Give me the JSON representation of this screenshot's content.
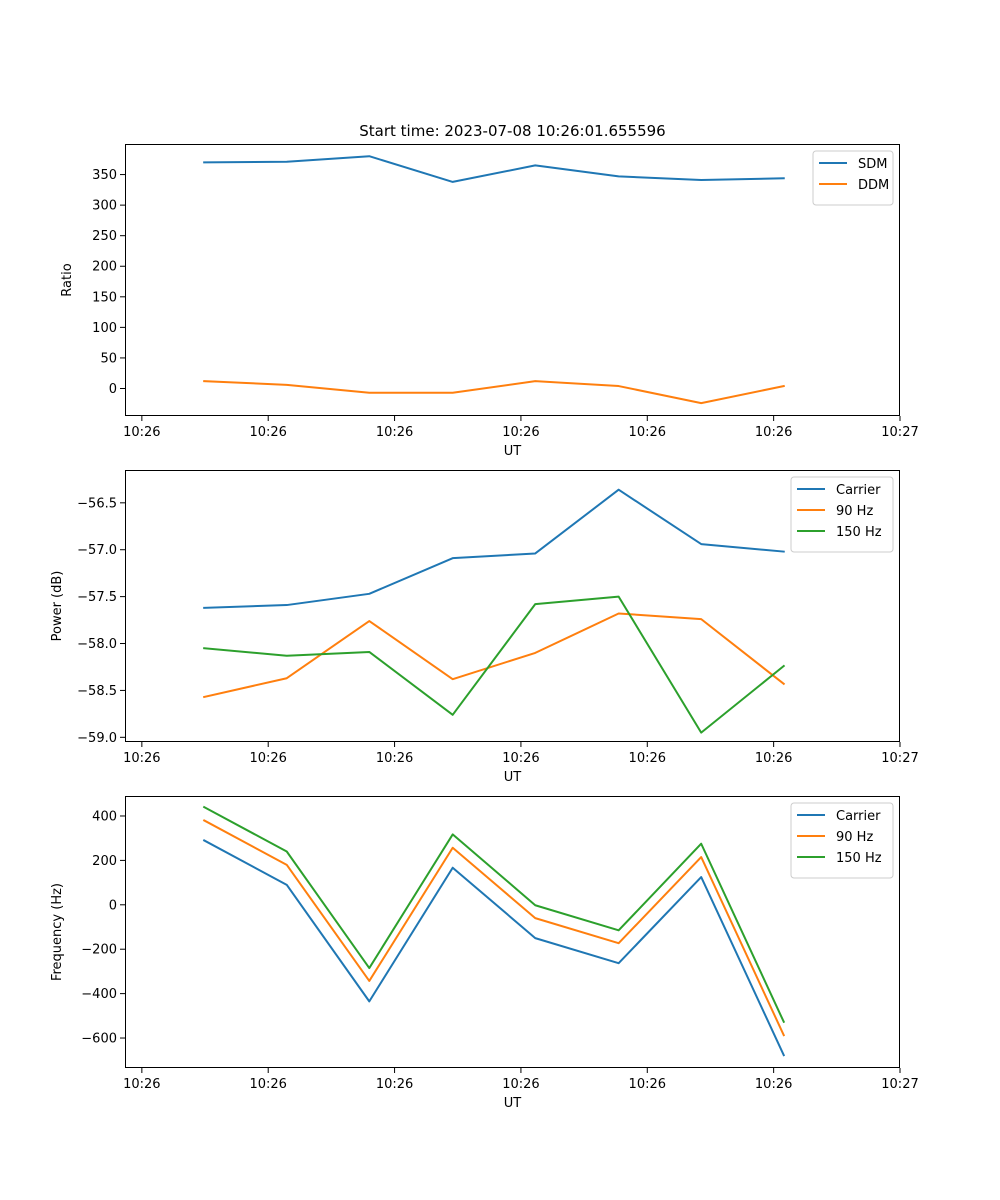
{
  "figure_title": "Start time: 2023-07-08 10:26:01.655596",
  "chart_data": [
    {
      "type": "line",
      "title": "Start time: 2023-07-08 10:26:01.655596",
      "xlabel": "UT",
      "ylabel": "Ratio",
      "xlim": [
        -0.2,
        9
      ],
      "ylim": [
        -45,
        400
      ],
      "xticks": [
        0,
        1.5,
        3,
        4.5,
        6,
        7.5,
        9
      ],
      "xtick_labels": [
        "10:26",
        "10:26",
        "10:26",
        "10:26",
        "10:26",
        "10:26",
        "10:27"
      ],
      "yticks": [
        0,
        50,
        100,
        150,
        200,
        250,
        300,
        350
      ],
      "ytick_labels": [
        "0",
        "50",
        "100",
        "150",
        "200",
        "250",
        "300",
        "350"
      ],
      "x": [
        0.74,
        1.72,
        2.7,
        3.69,
        4.67,
        5.66,
        6.64,
        7.62
      ],
      "series": [
        {
          "name": "SDM",
          "color": "#1f77b4",
          "values": [
            370,
            371,
            380,
            338,
            365,
            347,
            341,
            344
          ]
        },
        {
          "name": "DDM",
          "color": "#ff7f0e",
          "values": [
            12,
            6,
            -7,
            -7,
            12,
            4,
            -24,
            4
          ]
        }
      ],
      "legend": "top-right"
    },
    {
      "type": "line",
      "title": "",
      "xlabel": "UT",
      "ylabel": "Power (dB)",
      "xlim": [
        -0.2,
        9
      ],
      "ylim": [
        -59.05,
        -56.15
      ],
      "xticks": [
        0,
        1.5,
        3,
        4.5,
        6,
        7.5,
        9
      ],
      "xtick_labels": [
        "10:26",
        "10:26",
        "10:26",
        "10:26",
        "10:26",
        "10:26",
        "10:27"
      ],
      "yticks": [
        -59.0,
        -58.5,
        -58.0,
        -57.5,
        -57.0,
        -56.5
      ],
      "ytick_labels": [
        "−59.0",
        "−58.5",
        "−58.0",
        "−57.5",
        "−57.0",
        "−56.5"
      ],
      "x": [
        0.74,
        1.72,
        2.7,
        3.69,
        4.67,
        5.66,
        6.64,
        7.62
      ],
      "series": [
        {
          "name": "Carrier",
          "color": "#1f77b4",
          "values": [
            -57.62,
            -57.59,
            -57.47,
            -57.09,
            -57.04,
            -56.36,
            -56.94,
            -57.02
          ]
        },
        {
          "name": "90 Hz",
          "color": "#ff7f0e",
          "values": [
            -58.57,
            -58.37,
            -57.76,
            -58.38,
            -58.1,
            -57.68,
            -57.74,
            -58.43
          ]
        },
        {
          "name": "150 Hz",
          "color": "#2ca02c",
          "values": [
            -58.05,
            -58.13,
            -58.09,
            -58.76,
            -57.58,
            -57.5,
            -58.95,
            -58.24
          ]
        }
      ],
      "legend": "top-right"
    },
    {
      "type": "line",
      "title": "",
      "xlabel": "UT",
      "ylabel": "Frequency (Hz)",
      "xlim": [
        -0.2,
        9
      ],
      "ylim": [
        -735,
        490
      ],
      "xticks": [
        0,
        1.5,
        3,
        4.5,
        6,
        7.5,
        9
      ],
      "xtick_labels": [
        "10:26",
        "10:26",
        "10:26",
        "10:26",
        "10:26",
        "10:26",
        "10:27"
      ],
      "yticks": [
        -600,
        -400,
        -200,
        0,
        200,
        400
      ],
      "ytick_labels": [
        "−600",
        "−400",
        "−200",
        "0",
        "200",
        "400"
      ],
      "x": [
        0.74,
        1.72,
        2.7,
        3.69,
        4.67,
        5.66,
        6.64,
        7.62
      ],
      "series": [
        {
          "name": "Carrier",
          "color": "#1f77b4",
          "values": [
            290,
            90,
            -435,
            167,
            -150,
            -263,
            125,
            -677
          ]
        },
        {
          "name": "90 Hz",
          "color": "#ff7f0e",
          "values": [
            380,
            180,
            -343,
            257,
            -60,
            -173,
            215,
            -587
          ]
        },
        {
          "name": "150 Hz",
          "color": "#2ca02c",
          "values": [
            440,
            240,
            -285,
            317,
            -2,
            -115,
            275,
            -527
          ]
        }
      ],
      "legend": "top-right"
    }
  ]
}
